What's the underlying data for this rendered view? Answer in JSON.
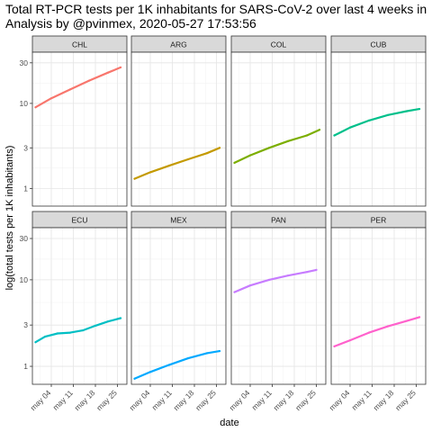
{
  "title_line1": "Total RT-PCR tests per 1K inhabitants for SARS-CoV-2 over last 4 weeks in",
  "title_line2": "Analysis by @pvinmex, 2020-05-27 17:53:56",
  "chart_data": {
    "type": "line",
    "xlabel": "date",
    "ylabel": "log(total tests per 1K inhabitants)",
    "y_scale": "log",
    "ylim": [
      0.62,
      40
    ],
    "xlim": [
      "2020-04-28",
      "2020-05-28"
    ],
    "y_ticks": [
      1,
      3,
      10,
      30
    ],
    "y_tick_labels": [
      "1",
      "3",
      "10",
      "30"
    ],
    "x_ticks": [
      "2020-05-04",
      "2020-05-11",
      "2020-05-18",
      "2020-05-25"
    ],
    "x_tick_labels": [
      "may 04",
      "may 11",
      "may 18",
      "may 25"
    ],
    "grid": true,
    "layout": "facets 2 rows x 4 columns",
    "panels": [
      {
        "name": "CHL",
        "color": "#f8766d",
        "x": [
          "2020-04-29",
          "2020-05-04",
          "2020-05-10",
          "2020-05-16",
          "2020-05-22",
          "2020-05-26"
        ],
        "values": [
          9.0,
          11.5,
          14.6,
          18.5,
          23.0,
          26.5
        ]
      },
      {
        "name": "ARG",
        "color": "#c49a00",
        "x": [
          "2020-04-29",
          "2020-05-04",
          "2020-05-10",
          "2020-05-16",
          "2020-05-22",
          "2020-05-26"
        ],
        "values": [
          1.3,
          1.55,
          1.85,
          2.2,
          2.6,
          3.0
        ]
      },
      {
        "name": "COL",
        "color": "#7cae00",
        "x": [
          "2020-04-29",
          "2020-05-04",
          "2020-05-10",
          "2020-05-16",
          "2020-05-22",
          "2020-05-26"
        ],
        "values": [
          2.0,
          2.45,
          3.0,
          3.6,
          4.2,
          4.9
        ]
      },
      {
        "name": "CUB",
        "color": "#00c08b",
        "x": [
          "2020-04-29",
          "2020-05-04",
          "2020-05-10",
          "2020-05-16",
          "2020-05-22",
          "2020-05-26"
        ],
        "values": [
          4.2,
          5.2,
          6.3,
          7.3,
          8.1,
          8.6
        ]
      },
      {
        "name": "ECU",
        "color": "#00bfc4",
        "x": [
          "2020-04-29",
          "2020-05-02",
          "2020-05-06",
          "2020-05-10",
          "2020-05-14",
          "2020-05-18",
          "2020-05-22",
          "2020-05-26"
        ],
        "values": [
          1.9,
          2.2,
          2.4,
          2.45,
          2.6,
          2.95,
          3.3,
          3.6
        ]
      },
      {
        "name": "MEX",
        "color": "#00a9ff",
        "x": [
          "2020-04-29",
          "2020-05-04",
          "2020-05-10",
          "2020-05-16",
          "2020-05-22",
          "2020-05-26"
        ],
        "values": [
          0.72,
          0.86,
          1.04,
          1.24,
          1.42,
          1.5
        ]
      },
      {
        "name": "PAN",
        "color": "#c77cff",
        "x": [
          "2020-04-29",
          "2020-05-04",
          "2020-05-10",
          "2020-05-16",
          "2020-05-22",
          "2020-05-25"
        ],
        "values": [
          7.2,
          8.6,
          10.0,
          11.2,
          12.3,
          13.0
        ]
      },
      {
        "name": "PER",
        "color": "#ff61cc",
        "x": [
          "2020-04-29",
          "2020-05-04",
          "2020-05-10",
          "2020-05-16",
          "2020-05-22",
          "2020-05-26"
        ],
        "values": [
          1.7,
          2.0,
          2.45,
          2.9,
          3.35,
          3.7
        ]
      }
    ]
  }
}
